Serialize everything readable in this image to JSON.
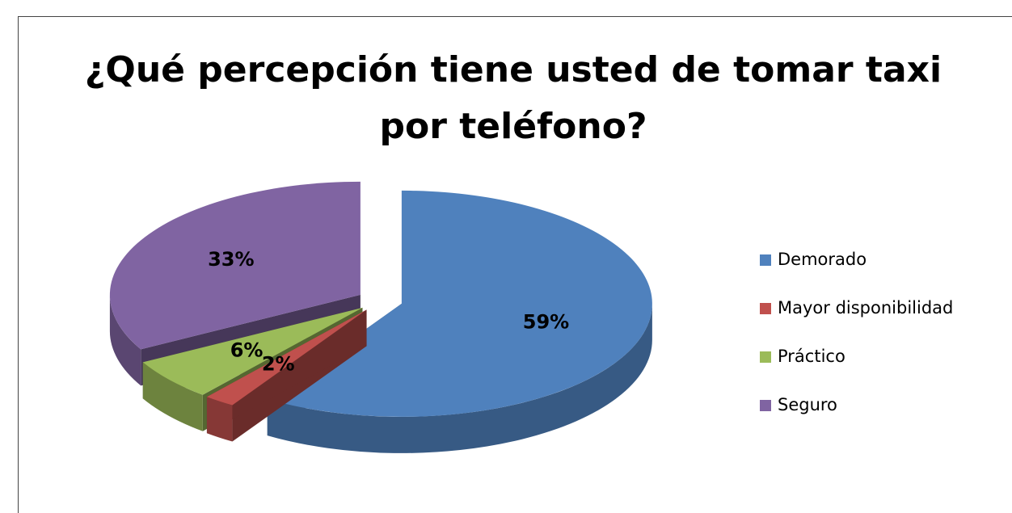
{
  "chart_data": {
    "type": "pie",
    "title": "¿Qué percepción tiene usted de tomar taxi por teléfono?",
    "categories": [
      "Demorado",
      "Mayor disponibilidad",
      "Práctico",
      "Seguro"
    ],
    "values": [
      59,
      2,
      6,
      33
    ],
    "value_labels": [
      "59%",
      "2%",
      "6%",
      "33%"
    ],
    "colors": [
      "#4f81bd",
      "#c0504d",
      "#9bbb59",
      "#8064a2"
    ],
    "legend": "right"
  }
}
